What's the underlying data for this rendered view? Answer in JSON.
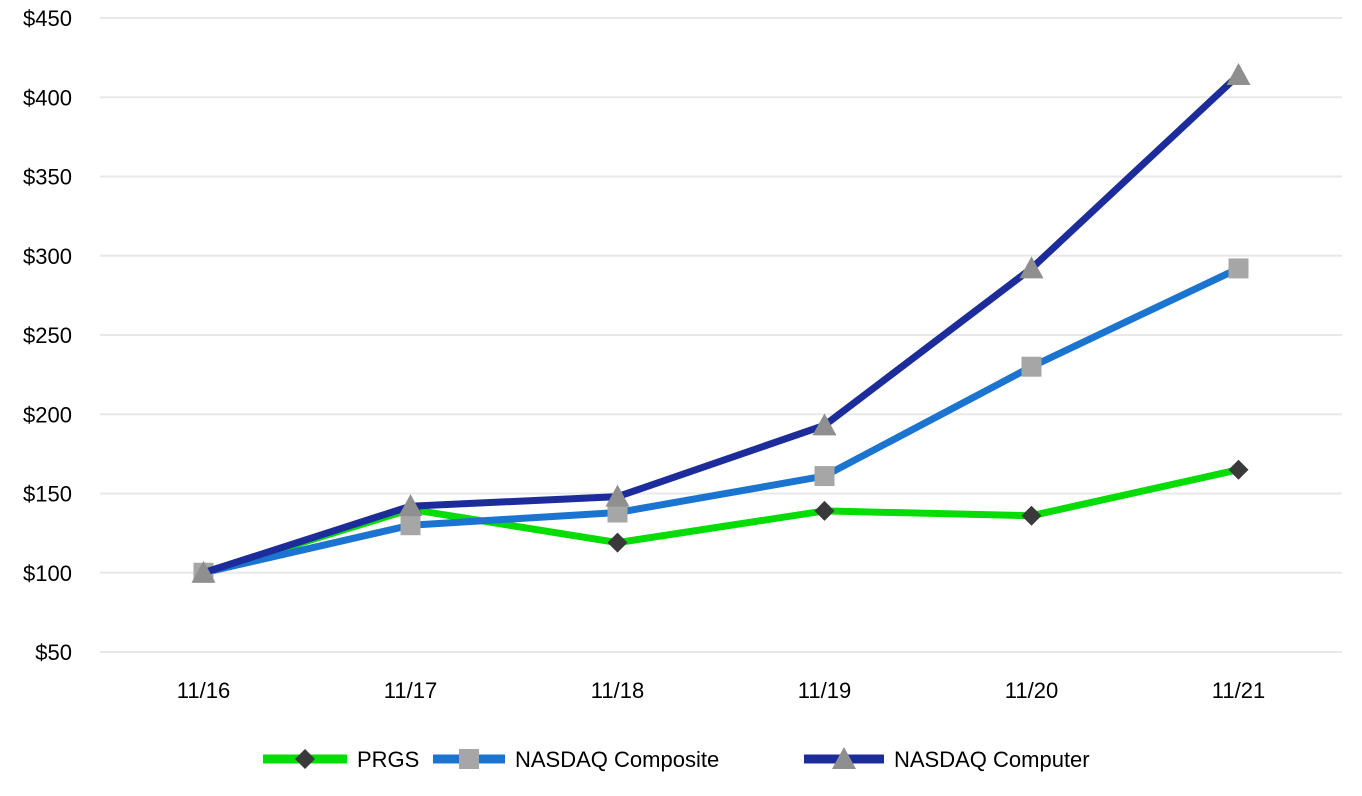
{
  "chart_data": {
    "type": "line",
    "title": "",
    "x": [
      "11/16",
      "11/17",
      "11/18",
      "11/19",
      "11/20",
      "11/21"
    ],
    "y_ticks": {
      "values": [
        450,
        400,
        350,
        300,
        250,
        200,
        150,
        100,
        50
      ],
      "labels": [
        "$450",
        "$400",
        "$350",
        "$300",
        "$250",
        "$200",
        "$150",
        "$100",
        "$50"
      ]
    },
    "ylim": [
      50,
      450
    ],
    "grid": true,
    "legend_position": "bottom",
    "series": [
      {
        "name": "PRGS",
        "line_color": "#06dc06",
        "marker": "diamond",
        "marker_color": "#3a3a3a",
        "values": [
          100,
          140,
          119,
          139,
          136,
          165
        ]
      },
      {
        "name": "NASDAQ Composite",
        "line_color": "#1b75d0",
        "marker": "square",
        "marker_color": "#a6a6a6",
        "values": [
          100,
          130,
          138,
          161,
          230,
          292
        ]
      },
      {
        "name": "NASDAQ Computer",
        "line_color": "#1c2d9b",
        "marker": "triangle",
        "marker_color": "#8f8f8f",
        "values": [
          100,
          142,
          148,
          193,
          292,
          414
        ]
      }
    ],
    "colors": {
      "gridline": "#e8e8e8",
      "text": "#000000",
      "background": "#ffffff"
    }
  }
}
